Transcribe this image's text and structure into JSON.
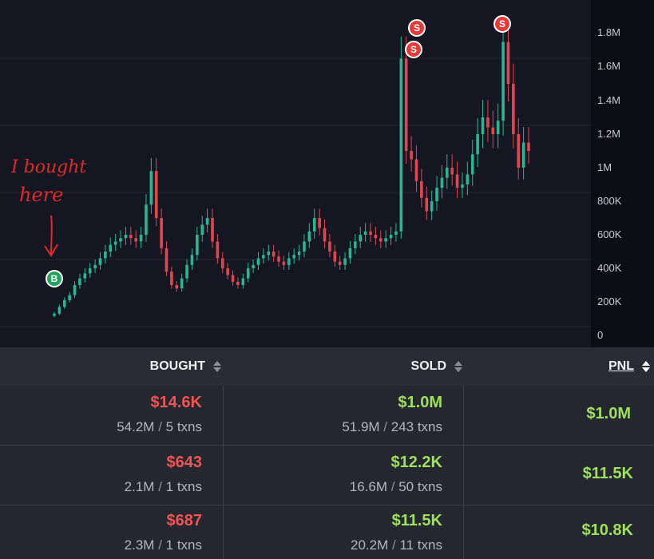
{
  "colors": {
    "up": "#2ab595",
    "down": "#e2454f",
    "background": "#141722",
    "sell_marker": "#e5393a",
    "buy_marker": "#24a35d",
    "annotation": "#e02a26"
  },
  "price_axis": {
    "ticks": [
      "1.8M",
      "1.6M",
      "1.4M",
      "1.2M",
      "1M",
      "800K",
      "600K",
      "400K",
      "200K",
      "0"
    ]
  },
  "markers": [
    {
      "label": "S",
      "type": "sell"
    },
    {
      "label": "S",
      "type": "sell"
    },
    {
      "label": "S",
      "type": "sell"
    },
    {
      "label": "B",
      "type": "buy"
    }
  ],
  "annotation": {
    "line1": "I bought",
    "line2": "here"
  },
  "chart_data": {
    "type": "candlestick",
    "ylim": [
      0,
      2000000
    ],
    "close_series": [
      130000,
      170000,
      210000,
      240000,
      300000,
      340000,
      370000,
      400000,
      420000,
      460000,
      500000,
      540000,
      560000,
      580000,
      600000,
      580000,
      560000,
      600000,
      780000,
      980000,
      700000,
      520000,
      380000,
      300000,
      280000,
      340000,
      420000,
      480000,
      600000,
      660000,
      700000,
      560000,
      460000,
      400000,
      360000,
      320000,
      300000,
      340000,
      400000,
      420000,
      460000,
      480000,
      500000,
      470000,
      440000,
      420000,
      460000,
      480000,
      500000,
      560000,
      620000,
      700000,
      640000,
      560000,
      500000,
      440000,
      420000,
      460000,
      520000,
      560000,
      600000,
      620000,
      600000,
      580000,
      560000,
      580000,
      600000,
      620000,
      1650000,
      1100000,
      1050000,
      920000,
      820000,
      740000,
      800000,
      880000,
      940000,
      1000000,
      960000,
      880000,
      900000,
      960000,
      1080000,
      1200000,
      1300000,
      1240000,
      1200000,
      1280000,
      1750000,
      1500000,
      1200000,
      1000000,
      1150000,
      1100000
    ]
  },
  "table": {
    "headers": {
      "bought": "BOUGHT",
      "sold": "SOLD",
      "pnl": "PNL"
    },
    "rows": [
      {
        "bought": "$14.6K",
        "bought_tokens": "54.2M",
        "bought_txns": "5 txns",
        "sold": "$1.0M",
        "sold_tokens": "51.9M",
        "sold_txns": "243 txns",
        "pnl": "$1.0M"
      },
      {
        "bought": "$643",
        "bought_tokens": "2.1M",
        "bought_txns": "1 txns",
        "sold": "$12.2K",
        "sold_tokens": "16.6M",
        "sold_txns": "50 txns",
        "pnl": "$11.5K"
      },
      {
        "bought": "$687",
        "bought_tokens": "2.3M",
        "bought_txns": "1 txns",
        "sold": "$11.5K",
        "sold_tokens": "20.2M",
        "sold_txns": "11 txns",
        "pnl": "$10.8K"
      }
    ]
  }
}
